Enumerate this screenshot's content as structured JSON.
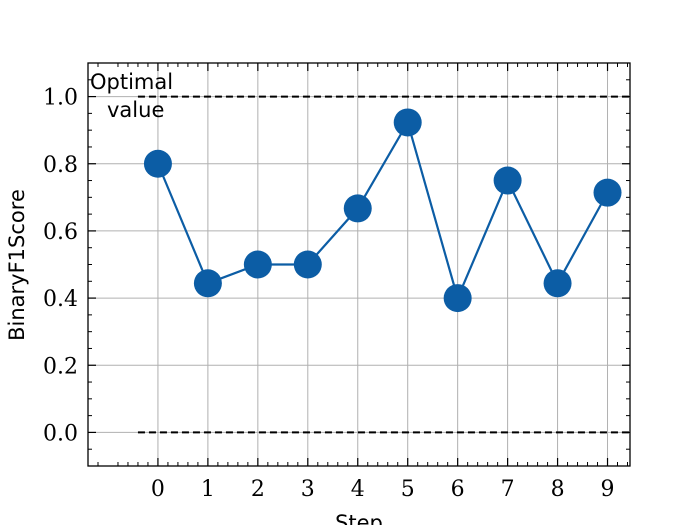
{
  "chart_data": {
    "type": "line",
    "x": [
      0,
      1,
      2,
      3,
      4,
      5,
      6,
      7,
      8,
      9
    ],
    "series": [
      {
        "values": [
          0.8,
          0.444,
          0.5,
          0.5,
          0.667,
          0.923,
          0.4,
          0.75,
          0.444,
          0.714
        ]
      }
    ],
    "xlabel": "Step",
    "ylabel": "BinaryF1Score",
    "xlim": [
      -1.4,
      9.45
    ],
    "ylim": [
      -0.1,
      1.1
    ],
    "xticks": [
      "0",
      "1",
      "2",
      "3",
      "4",
      "5",
      "6",
      "7",
      "8",
      "9"
    ],
    "yticks": [
      "0.0",
      "0.2",
      "0.4",
      "0.6",
      "0.8",
      "1.0"
    ],
    "grid": true,
    "reference_lines": [
      {
        "y": 1.0,
        "style": "dashed"
      },
      {
        "y": 0.0,
        "style": "dashed"
      }
    ],
    "annotation": {
      "line1": "Optimal",
      "line2": "value"
    },
    "colors": {
      "series": "#0c5da5",
      "reference": "#000000",
      "grid": "#b0b0b0"
    }
  }
}
